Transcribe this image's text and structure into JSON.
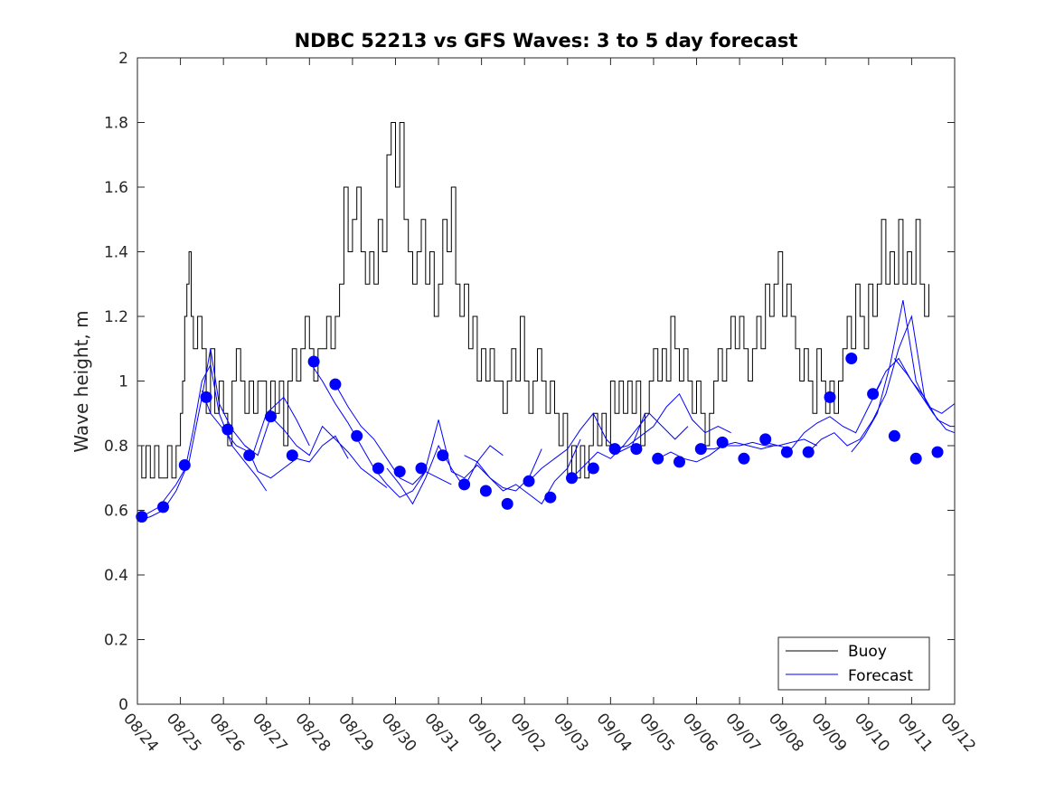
{
  "chart_data": {
    "type": "line",
    "title": "NDBC 52213 vs GFS Waves: 3 to 5 day forecast",
    "xlabel": "",
    "ylabel": "Wave height, m",
    "ylim": [
      0,
      2
    ],
    "xlim": [
      0,
      19
    ],
    "yticks": [
      0,
      0.2,
      0.4,
      0.6,
      0.8,
      1,
      1.2,
      1.4,
      1.6,
      1.8,
      2
    ],
    "ytick_labels": [
      "0",
      "0.2",
      "0.4",
      "0.6",
      "0.8",
      "1",
      "1.2",
      "1.4",
      "1.6",
      "1.8",
      "2"
    ],
    "xtick_labels": [
      "08/24",
      "08/25",
      "08/26",
      "08/27",
      "08/28",
      "08/29",
      "08/30",
      "08/31",
      "09/01",
      "09/02",
      "09/03",
      "09/04",
      "09/05",
      "09/06",
      "09/07",
      "09/08",
      "09/09",
      "09/10",
      "09/11",
      "09/12"
    ],
    "grid": false,
    "legend": {
      "placement": "bottom-right",
      "entries": [
        "Buoy",
        "Forecast"
      ]
    },
    "colors": {
      "buoy": "#000000",
      "forecast": "#0000ff",
      "axis": "#262626"
    },
    "series": [
      {
        "name": "Buoy",
        "style": "step-line",
        "color": "#000000",
        "x": [
          0,
          0.1,
          0.2,
          0.3,
          0.4,
          0.5,
          0.6,
          0.7,
          0.8,
          0.9,
          1.0,
          1.05,
          1.1,
          1.15,
          1.2,
          1.25,
          1.3,
          1.4,
          1.5,
          1.6,
          1.7,
          1.8,
          1.9,
          2.0,
          2.1,
          2.2,
          2.3,
          2.4,
          2.5,
          2.6,
          2.7,
          2.8,
          2.9,
          3.0,
          3.1,
          3.2,
          3.3,
          3.4,
          3.5,
          3.6,
          3.7,
          3.8,
          3.9,
          4.0,
          4.1,
          4.2,
          4.3,
          4.4,
          4.5,
          4.6,
          4.7,
          4.8,
          4.9,
          5.0,
          5.1,
          5.2,
          5.3,
          5.4,
          5.5,
          5.6,
          5.7,
          5.8,
          5.9,
          6.0,
          6.1,
          6.2,
          6.3,
          6.4,
          6.5,
          6.6,
          6.7,
          6.8,
          6.9,
          7.0,
          7.1,
          7.2,
          7.3,
          7.4,
          7.5,
          7.6,
          7.7,
          7.8,
          7.9,
          8.0,
          8.1,
          8.2,
          8.3,
          8.4,
          8.5,
          8.6,
          8.7,
          8.8,
          8.9,
          9.0,
          9.1,
          9.2,
          9.3,
          9.4,
          9.5,
          9.6,
          9.7,
          9.8,
          9.9,
          10.0,
          10.1,
          10.2,
          10.3,
          10.4,
          10.5,
          10.6,
          10.7,
          10.8,
          10.9,
          11.0,
          11.1,
          11.2,
          11.3,
          11.4,
          11.5,
          11.6,
          11.7,
          11.8,
          11.9,
          12.0,
          12.1,
          12.2,
          12.3,
          12.4,
          12.5,
          12.6,
          12.7,
          12.8,
          12.9,
          13.0,
          13.1,
          13.2,
          13.3,
          13.4,
          13.5,
          13.6,
          13.7,
          13.8,
          13.9,
          14.0,
          14.1,
          14.2,
          14.3,
          14.4,
          14.5,
          14.6,
          14.7,
          14.8,
          14.9,
          15.0,
          15.1,
          15.2,
          15.3,
          15.4,
          15.5,
          15.6,
          15.7,
          15.8,
          15.9,
          16.0,
          16.1,
          16.2,
          16.3,
          16.4,
          16.5,
          16.6,
          16.7,
          16.8,
          16.9,
          17.0,
          17.1,
          17.2,
          17.3,
          17.4,
          17.5,
          17.6,
          17.7,
          17.8,
          17.9,
          18.0,
          18.1,
          18.2,
          18.3,
          18.4
        ],
        "values": [
          0.8,
          0.7,
          0.8,
          0.7,
          0.8,
          0.7,
          0.7,
          0.8,
          0.7,
          0.8,
          0.9,
          1.0,
          1.2,
          1.3,
          1.4,
          1.2,
          1.1,
          1.2,
          1.1,
          0.9,
          1.1,
          0.9,
          1.0,
          0.9,
          0.8,
          1.0,
          1.1,
          1.0,
          0.9,
          1.0,
          0.9,
          1.0,
          1.0,
          0.9,
          1.0,
          0.9,
          1.0,
          0.8,
          1.0,
          1.1,
          1.0,
          1.1,
          1.2,
          1.1,
          1.0,
          1.1,
          1.1,
          1.2,
          1.1,
          1.2,
          1.3,
          1.6,
          1.4,
          1.5,
          1.6,
          1.4,
          1.3,
          1.4,
          1.3,
          1.5,
          1.4,
          1.7,
          1.8,
          1.6,
          1.8,
          1.5,
          1.4,
          1.3,
          1.4,
          1.5,
          1.3,
          1.4,
          1.2,
          1.3,
          1.5,
          1.4,
          1.6,
          1.3,
          1.2,
          1.3,
          1.1,
          1.2,
          1.0,
          1.1,
          1.0,
          1.1,
          1.0,
          1.0,
          0.9,
          1.0,
          1.1,
          1.0,
          1.2,
          1.0,
          0.9,
          1.0,
          1.1,
          1.0,
          0.9,
          1.0,
          0.9,
          0.8,
          0.9,
          0.7,
          0.8,
          0.7,
          0.8,
          0.7,
          0.8,
          0.9,
          0.8,
          0.9,
          0.8,
          1.0,
          0.9,
          1.0,
          0.9,
          1.0,
          0.9,
          1.0,
          0.8,
          0.9,
          1.0,
          1.1,
          1.0,
          1.1,
          1.0,
          1.2,
          1.1,
          1.0,
          1.1,
          1.0,
          0.9,
          1.0,
          0.9,
          0.8,
          0.9,
          1.0,
          1.1,
          1.0,
          1.1,
          1.2,
          1.1,
          1.2,
          1.1,
          1.0,
          1.1,
          1.2,
          1.1,
          1.3,
          1.2,
          1.3,
          1.4,
          1.2,
          1.3,
          1.2,
          1.1,
          1.0,
          1.1,
          1.0,
          0.9,
          1.1,
          1.0,
          0.9,
          1.0,
          0.9,
          1.0,
          1.1,
          1.2,
          1.1,
          1.3,
          1.2,
          1.1,
          1.3,
          1.2,
          1.3,
          1.5,
          1.3,
          1.4,
          1.3,
          1.5,
          1.3,
          1.4,
          1.3,
          1.5,
          1.3,
          1.2,
          1.3
        ]
      },
      {
        "name": "Forecast",
        "style": "line",
        "color": "#0000ff",
        "segments": [
          {
            "x": [
              0.05,
              0.3,
              0.6,
              0.9,
              1.1,
              1.3,
              1.5,
              1.7,
              1.9,
              2.2,
              2.5,
              2.8,
              3.0
            ],
            "values": [
              0.57,
              0.58,
              0.6,
              0.66,
              0.72,
              0.85,
              1.0,
              1.05,
              0.9,
              0.8,
              0.75,
              0.7,
              0.66
            ]
          },
          {
            "x": [
              0.1,
              0.5,
              0.9,
              1.2,
              1.5,
              1.7,
              1.9,
              2.2,
              2.5,
              2.7,
              3.0,
              3.4,
              3.7,
              4.0
            ],
            "values": [
              0.58,
              0.61,
              0.68,
              0.75,
              0.95,
              1.1,
              0.93,
              0.85,
              0.8,
              0.78,
              0.9,
              0.95,
              0.88,
              0.8
            ]
          },
          {
            "x": [
              1.5,
              1.7,
              2.0,
              2.3,
              2.6,
              2.8,
              3.1,
              3.4,
              3.7,
              4.0,
              4.3,
              4.6,
              4.9
            ],
            "values": [
              0.97,
              0.9,
              0.85,
              0.8,
              0.78,
              0.72,
              0.7,
              0.73,
              0.76,
              0.75,
              0.8,
              0.83,
              0.76
            ]
          },
          {
            "x": [
              2.5,
              2.8,
              3.1,
              3.4,
              3.7,
              4.0,
              4.3,
              4.6,
              4.9,
              5.2,
              5.5,
              5.8
            ],
            "values": [
              0.8,
              0.77,
              0.89,
              0.85,
              0.8,
              0.77,
              0.86,
              0.82,
              0.78,
              0.73,
              0.7,
              0.67
            ]
          },
          {
            "x": [
              4.0,
              4.3,
              4.6,
              4.9,
              5.2,
              5.5,
              5.8,
              6.1,
              6.4,
              6.7
            ],
            "values": [
              1.06,
              1.0,
              0.93,
              0.87,
              0.8,
              0.73,
              0.68,
              0.64,
              0.66,
              0.72
            ]
          },
          {
            "x": [
              4.6,
              4.9,
              5.2,
              5.5,
              5.8,
              6.1,
              6.4,
              6.7,
              7.0,
              7.3
            ],
            "values": [
              0.99,
              0.92,
              0.86,
              0.82,
              0.76,
              0.7,
              0.68,
              0.72,
              0.7,
              0.68
            ]
          },
          {
            "x": [
              5.8,
              6.1,
              6.4,
              6.7,
              7.0,
              7.3,
              7.6,
              7.9,
              8.2,
              8.5
            ],
            "values": [
              0.73,
              0.68,
              0.62,
              0.7,
              0.8,
              0.73,
              0.67,
              0.75,
              0.8,
              0.77
            ]
          },
          {
            "x": [
              6.7,
              7.0,
              7.3,
              7.6,
              7.9,
              8.2,
              8.5,
              8.8,
              9.1,
              9.4
            ],
            "values": [
              0.73,
              0.88,
              0.72,
              0.7,
              0.74,
              0.7,
              0.67,
              0.66,
              0.7,
              0.79
            ]
          },
          {
            "x": [
              7.6,
              7.9,
              8.2,
              8.5,
              8.8,
              9.1,
              9.4,
              9.7,
              10.0,
              10.3
            ],
            "values": [
              0.77,
              0.75,
              0.7,
              0.66,
              0.68,
              0.65,
              0.62,
              0.69,
              0.73,
              0.82
            ]
          },
          {
            "x": [
              9.1,
              9.4,
              9.7,
              10.0,
              10.3,
              10.6,
              10.9,
              11.2,
              11.5,
              11.8
            ],
            "values": [
              0.69,
              0.73,
              0.76,
              0.79,
              0.85,
              0.9,
              0.82,
              0.78,
              0.8,
              0.9
            ]
          },
          {
            "x": [
              10.1,
              10.4,
              10.7,
              11.0,
              11.3,
              11.6,
              11.9,
              12.2,
              12.5,
              12.8
            ],
            "values": [
              0.7,
              0.74,
              0.78,
              0.76,
              0.8,
              0.85,
              0.9,
              0.86,
              0.82,
              0.86
            ]
          },
          {
            "x": [
              11.1,
              11.4,
              11.7,
              12.0,
              12.3,
              12.6,
              12.9,
              13.2,
              13.5,
              13.8
            ],
            "values": [
              0.79,
              0.8,
              0.83,
              0.86,
              0.92,
              0.96,
              0.88,
              0.84,
              0.86,
              0.84
            ]
          },
          {
            "x": [
              12.1,
              12.4,
              12.7,
              13.0,
              13.3,
              13.6,
              13.9,
              14.2,
              14.5,
              14.8
            ],
            "values": [
              0.76,
              0.78,
              0.76,
              0.75,
              0.77,
              0.8,
              0.81,
              0.8,
              0.79,
              0.8
            ]
          },
          {
            "x": [
              13.1,
              13.4,
              13.7,
              14.0,
              14.3,
              14.6,
              14.9,
              15.2,
              15.5,
              15.8
            ],
            "values": [
              0.79,
              0.79,
              0.8,
              0.8,
              0.81,
              0.8,
              0.8,
              0.81,
              0.82,
              0.8
            ]
          },
          {
            "x": [
              14.6,
              14.9,
              15.2,
              15.5,
              15.8,
              16.1,
              16.4,
              16.7,
              17.0,
              17.3
            ],
            "values": [
              0.81,
              0.8,
              0.79,
              0.84,
              0.87,
              0.89,
              0.86,
              0.84,
              0.92,
              1.0
            ]
          },
          {
            "x": [
              15.6,
              15.9,
              16.2,
              16.5,
              16.8,
              17.1,
              17.4,
              17.7,
              18.0,
              18.3
            ],
            "values": [
              0.78,
              0.82,
              0.84,
              0.8,
              0.82,
              0.88,
              0.96,
              1.1,
              1.2,
              0.95
            ]
          },
          {
            "x": [
              16.6,
              16.9,
              17.2,
              17.5,
              17.8,
              18.1,
              18.4,
              18.7,
              19.0
            ],
            "values": [
              0.78,
              0.83,
              0.9,
              1.05,
              1.25,
              1.0,
              0.92,
              0.9,
              0.93
            ]
          },
          {
            "x": [
              17.1,
              17.4,
              17.7,
              18.0,
              18.3,
              18.6,
              18.9,
              19.0
            ],
            "values": [
              0.95,
              1.03,
              1.07,
              1.0,
              0.95,
              0.88,
              0.86,
              0.86
            ]
          },
          {
            "x": [
              17.6,
              17.9,
              18.2,
              18.5,
              18.8,
              19.0
            ],
            "values": [
              1.07,
              1.02,
              0.96,
              0.9,
              0.85,
              0.84
            ]
          }
        ]
      },
      {
        "name": "Forecast analysis points",
        "style": "markers",
        "color": "#0000ff",
        "x": [
          0.1,
          0.6,
          1.1,
          1.6,
          2.1,
          2.6,
          3.1,
          3.6,
          4.1,
          4.6,
          5.1,
          5.6,
          6.1,
          6.6,
          7.1,
          7.6,
          8.1,
          8.6,
          9.1,
          9.6,
          10.1,
          10.6,
          11.1,
          11.6,
          12.1,
          12.6,
          13.1,
          13.6,
          14.1,
          14.6,
          15.1,
          15.6,
          16.1,
          16.6,
          17.1,
          17.6,
          18.1,
          18.6
        ],
        "values": [
          0.58,
          0.61,
          0.74,
          0.95,
          0.85,
          0.77,
          0.89,
          0.77,
          1.06,
          0.99,
          0.83,
          0.73,
          0.72,
          0.73,
          0.77,
          0.68,
          0.66,
          0.62,
          0.69,
          0.64,
          0.7,
          0.73,
          0.79,
          0.79,
          0.76,
          0.75,
          0.79,
          0.81,
          0.76,
          0.82,
          0.78,
          0.78,
          0.95,
          1.07,
          0.96,
          0.83,
          0.76,
          0.78
        ]
      }
    ]
  }
}
